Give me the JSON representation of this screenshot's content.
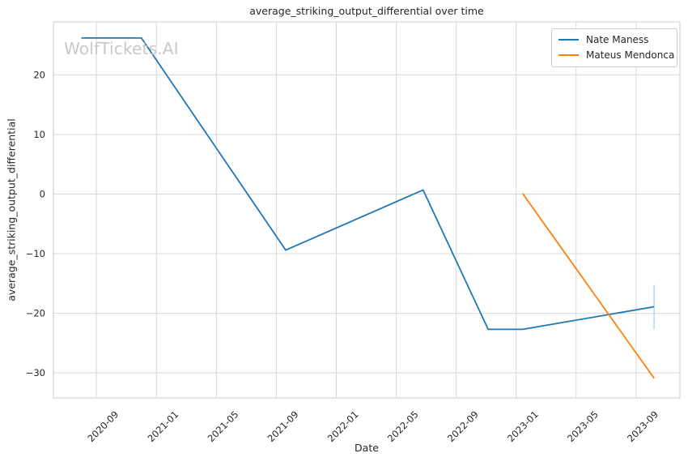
{
  "watermark": {
    "text": "WolfTickets.AI"
  },
  "chart_data": {
    "type": "line",
    "title": "average_striking_output_differential over time",
    "xlabel": "Date",
    "ylabel": "average_striking_output_differential",
    "grid": true,
    "legend_position": "upper right",
    "xlim": [
      "2020-06-05",
      "2023-11-29"
    ],
    "ylim": [
      -34.2,
      28.9
    ],
    "x_ticks": [
      {
        "date": "2020-09-01",
        "label": "2020-09"
      },
      {
        "date": "2021-01-01",
        "label": "2021-01"
      },
      {
        "date": "2021-05-01",
        "label": "2021-05"
      },
      {
        "date": "2021-09-01",
        "label": "2021-09"
      },
      {
        "date": "2022-01-01",
        "label": "2022-01"
      },
      {
        "date": "2022-05-01",
        "label": "2022-05"
      },
      {
        "date": "2022-09-01",
        "label": "2022-09"
      },
      {
        "date": "2023-01-01",
        "label": "2023-01"
      },
      {
        "date": "2023-05-01",
        "label": "2023-05"
      },
      {
        "date": "2023-09-01",
        "label": "2023-09"
      }
    ],
    "y_ticks": [
      {
        "value": 20,
        "label": "20"
      },
      {
        "value": 10,
        "label": "10"
      },
      {
        "value": 0,
        "label": "0"
      },
      {
        "value": -10,
        "label": "−10"
      },
      {
        "value": -20,
        "label": "−20"
      },
      {
        "value": -30,
        "label": "−30"
      }
    ],
    "grid_color": "#d8d8d8",
    "spine_color": "#cccccc",
    "series": [
      {
        "name": "Nate Maness",
        "color": "#1f77b4",
        "points": [
          {
            "date": "2020-08-01",
            "value": 26.2
          },
          {
            "date": "2020-12-01",
            "value": 26.2
          },
          {
            "date": "2021-09-20",
            "value": -9.4
          },
          {
            "date": "2022-06-25",
            "value": 0.7
          },
          {
            "date": "2022-11-05",
            "value": -22.7
          },
          {
            "date": "2023-01-14",
            "value": -22.7
          },
          {
            "date": "2023-10-07",
            "value": -18.9
          }
        ],
        "error_bar": {
          "date": "2023-10-07",
          "high": -15.2,
          "low": -22.7,
          "color": "#bdd7ec"
        }
      },
      {
        "name": "Mateus Mendonca",
        "color": "#ff7f0e",
        "points": [
          {
            "date": "2023-01-14",
            "value": 0.1
          },
          {
            "date": "2023-10-07",
            "value": -30.9
          }
        ]
      }
    ]
  }
}
